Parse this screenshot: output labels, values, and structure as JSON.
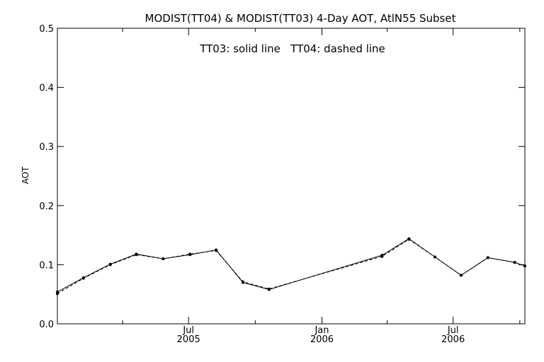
{
  "chart_data": {
    "type": "line",
    "title": "MODIST(TT04) & MODIST(TT03) 4-Day AOT, AtlN55 Subset",
    "annotation": "TT03: solid line   TT04: dashed line",
    "xlabel": "",
    "ylabel": "AOT",
    "ylim": [
      0.0,
      0.5
    ],
    "xlim": [
      "2005-01-01",
      "2006-10-08"
    ],
    "yticks": [
      "0.0",
      "0.1",
      "0.2",
      "0.3",
      "0.4",
      "0.5"
    ],
    "xticks": [
      {
        "date": "2005-07-01",
        "line1": "Jul",
        "line2": "2005"
      },
      {
        "date": "2006-01-01",
        "line1": "Jan",
        "line2": "2006"
      },
      {
        "date": "2006-07-01",
        "line1": "Jul",
        "line2": "2006"
      }
    ],
    "minor_xticks": [
      "2005-04-01",
      "2005-10-01",
      "2006-04-01",
      "2006-10-01"
    ],
    "series": [
      {
        "name": "TT03",
        "style": "solid",
        "x": [
          "2005-01-01",
          "2005-02-06",
          "2005-03-15",
          "2005-04-20",
          "2005-05-27",
          "2005-07-03",
          "2005-08-08",
          "2005-09-14",
          "2005-10-20",
          "2006-03-25",
          "2006-05-01",
          "2006-06-06",
          "2006-07-12",
          "2006-08-18",
          "2006-09-24",
          "2006-10-08"
        ],
        "values": [
          0.054,
          0.078,
          0.101,
          0.118,
          0.11,
          0.117,
          0.125,
          0.07,
          0.058,
          0.116,
          0.144,
          0.113,
          0.082,
          0.112,
          0.104,
          0.098
        ]
      },
      {
        "name": "TT04",
        "style": "dashed",
        "x": [
          "2005-01-01",
          "2005-02-06",
          "2005-03-15",
          "2005-04-20",
          "2005-05-27",
          "2005-07-03",
          "2005-08-08",
          "2005-09-14",
          "2005-10-20",
          "2006-03-25",
          "2006-05-01",
          "2006-06-06",
          "2006-07-12",
          "2006-08-18",
          "2006-09-24",
          "2006-10-08"
        ],
        "values": [
          0.051,
          0.077,
          0.1,
          0.117,
          0.11,
          0.118,
          0.124,
          0.071,
          0.059,
          0.114,
          0.143,
          0.113,
          0.082,
          0.112,
          0.104,
          0.098
        ]
      }
    ],
    "grid": false,
    "line_color": "#000000",
    "background": "#ffffff"
  }
}
